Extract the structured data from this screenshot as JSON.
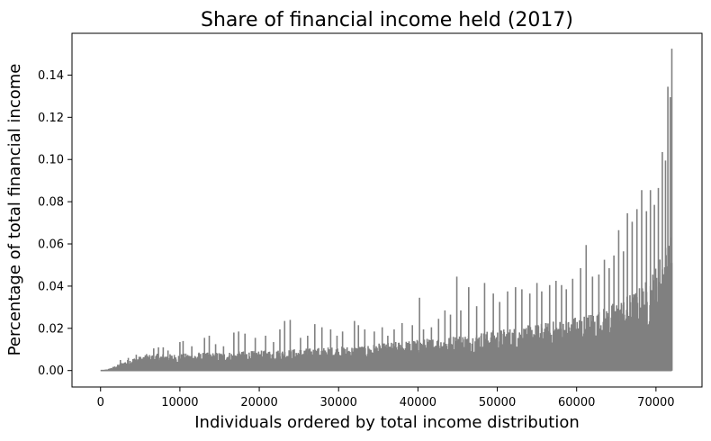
{
  "chart_data": {
    "type": "area",
    "title": "Share of financial income held (2017)",
    "xlabel": "Individuals ordered by total income distribution",
    "ylabel": "Percentage of total financial income",
    "xlim": [
      -3600,
      75800
    ],
    "ylim": [
      -0.0078,
      0.1598
    ],
    "x_ticks": [
      0,
      10000,
      20000,
      30000,
      40000,
      50000,
      60000,
      70000
    ],
    "x_tick_labels": [
      "0",
      "10000",
      "20000",
      "30000",
      "40000",
      "50000",
      "60000",
      "70000"
    ],
    "y_ticks": [
      0.0,
      0.02,
      0.04,
      0.06,
      0.08,
      0.1,
      0.12,
      0.14
    ],
    "y_tick_labels": [
      "0.00",
      "0.02",
      "0.04",
      "0.06",
      "0.08",
      "0.10",
      "0.12",
      "0.14"
    ],
    "series_color": "#808080",
    "grid": false,
    "n_individuals": 72000,
    "series": [
      {
        "x": [
          0,
          1000,
          2000,
          3000,
          4000,
          5000,
          6000,
          7000,
          8000,
          9000,
          10000,
          11000,
          12000,
          13000,
          14000,
          15000,
          16000,
          17000,
          18000,
          19000,
          20000,
          21000,
          22000,
          23000,
          24000,
          25000,
          26000,
          27000,
          28000,
          29000,
          30000,
          31000,
          32000,
          33000,
          34000,
          35000,
          36000,
          37000,
          38000,
          39000,
          40000,
          41000,
          42000,
          43000,
          44000,
          45000,
          46000,
          47000,
          48000,
          49000,
          50000,
          51000,
          52000,
          53000,
          54000,
          55000,
          56000,
          57000,
          58000,
          59000,
          60000,
          61000,
          62000,
          63000,
          64000,
          65000,
          66000,
          67000,
          68000,
          69000,
          70000,
          71000,
          72000
        ],
        "envelope": [
          0.0,
          0.0008,
          0.0025,
          0.0045,
          0.006,
          0.0068,
          0.0075,
          0.008,
          0.008,
          0.0078,
          0.008,
          0.0082,
          0.0083,
          0.0085,
          0.0086,
          0.0087,
          0.0088,
          0.009,
          0.0092,
          0.0093,
          0.0095,
          0.0096,
          0.0098,
          0.01,
          0.0102,
          0.0104,
          0.0106,
          0.0108,
          0.011,
          0.0112,
          0.0114,
          0.0116,
          0.0118,
          0.012,
          0.0124,
          0.0128,
          0.0132,
          0.0136,
          0.014,
          0.0144,
          0.0148,
          0.0152,
          0.0156,
          0.016,
          0.0165,
          0.017,
          0.0175,
          0.018,
          0.0185,
          0.019,
          0.0195,
          0.02,
          0.0205,
          0.021,
          0.0216,
          0.0222,
          0.0228,
          0.0235,
          0.0242,
          0.025,
          0.026,
          0.027,
          0.028,
          0.029,
          0.031,
          0.033,
          0.035,
          0.037,
          0.04,
          0.044,
          0.05,
          0.06,
          0.065
        ]
      }
    ],
    "spikes": [
      {
        "x": 2500,
        "y": 0.005
      },
      {
        "x": 3500,
        "y": 0.006
      },
      {
        "x": 4500,
        "y": 0.0075
      },
      {
        "x": 5800,
        "y": 0.0078
      },
      {
        "x": 6700,
        "y": 0.0105
      },
      {
        "x": 7300,
        "y": 0.011
      },
      {
        "x": 7900,
        "y": 0.011
      },
      {
        "x": 8500,
        "y": 0.0095
      },
      {
        "x": 10000,
        "y": 0.0135
      },
      {
        "x": 10400,
        "y": 0.014
      },
      {
        "x": 11500,
        "y": 0.0115
      },
      {
        "x": 12400,
        "y": 0.0085
      },
      {
        "x": 13100,
        "y": 0.0155
      },
      {
        "x": 13700,
        "y": 0.0165
      },
      {
        "x": 14500,
        "y": 0.0125
      },
      {
        "x": 15500,
        "y": 0.0115
      },
      {
        "x": 16800,
        "y": 0.018
      },
      {
        "x": 17400,
        "y": 0.0185
      },
      {
        "x": 18200,
        "y": 0.0175
      },
      {
        "x": 19500,
        "y": 0.0155
      },
      {
        "x": 20800,
        "y": 0.0165
      },
      {
        "x": 21800,
        "y": 0.0135
      },
      {
        "x": 22600,
        "y": 0.0195
      },
      {
        "x": 23200,
        "y": 0.0235
      },
      {
        "x": 23900,
        "y": 0.024
      },
      {
        "x": 25200,
        "y": 0.0155
      },
      {
        "x": 26100,
        "y": 0.0165
      },
      {
        "x": 27000,
        "y": 0.022
      },
      {
        "x": 27900,
        "y": 0.0205
      },
      {
        "x": 29000,
        "y": 0.0195
      },
      {
        "x": 29800,
        "y": 0.0165
      },
      {
        "x": 30500,
        "y": 0.0185
      },
      {
        "x": 32000,
        "y": 0.0235
      },
      {
        "x": 32500,
        "y": 0.0215
      },
      {
        "x": 33300,
        "y": 0.0195
      },
      {
        "x": 34500,
        "y": 0.0185
      },
      {
        "x": 35500,
        "y": 0.0205
      },
      {
        "x": 36200,
        "y": 0.0165
      },
      {
        "x": 37000,
        "y": 0.0195
      },
      {
        "x": 38000,
        "y": 0.0225
      },
      {
        "x": 39300,
        "y": 0.0215
      },
      {
        "x": 40200,
        "y": 0.0345
      },
      {
        "x": 40700,
        "y": 0.0195
      },
      {
        "x": 41700,
        "y": 0.0205
      },
      {
        "x": 42600,
        "y": 0.0245
      },
      {
        "x": 43400,
        "y": 0.0285
      },
      {
        "x": 44100,
        "y": 0.0265
      },
      {
        "x": 44900,
        "y": 0.0445
      },
      {
        "x": 45400,
        "y": 0.0285
      },
      {
        "x": 46400,
        "y": 0.0395
      },
      {
        "x": 47400,
        "y": 0.0305
      },
      {
        "x": 48400,
        "y": 0.0415
      },
      {
        "x": 49500,
        "y": 0.0365
      },
      {
        "x": 50300,
        "y": 0.0325
      },
      {
        "x": 51300,
        "y": 0.0375
      },
      {
        "x": 52300,
        "y": 0.0395
      },
      {
        "x": 53100,
        "y": 0.0385
      },
      {
        "x": 54100,
        "y": 0.0365
      },
      {
        "x": 55000,
        "y": 0.0415
      },
      {
        "x": 55600,
        "y": 0.0375
      },
      {
        "x": 56600,
        "y": 0.0405
      },
      {
        "x": 57400,
        "y": 0.0425
      },
      {
        "x": 58100,
        "y": 0.0405
      },
      {
        "x": 58700,
        "y": 0.0385
      },
      {
        "x": 59500,
        "y": 0.0435
      },
      {
        "x": 60500,
        "y": 0.0485
      },
      {
        "x": 61200,
        "y": 0.0595
      },
      {
        "x": 62000,
        "y": 0.0445
      },
      {
        "x": 62800,
        "y": 0.0455
      },
      {
        "x": 63500,
        "y": 0.0525
      },
      {
        "x": 64100,
        "y": 0.0485
      },
      {
        "x": 64700,
        "y": 0.0545
      },
      {
        "x": 65300,
        "y": 0.0665
      },
      {
        "x": 65900,
        "y": 0.0565
      },
      {
        "x": 66400,
        "y": 0.0745
      },
      {
        "x": 67000,
        "y": 0.0705
      },
      {
        "x": 67600,
        "y": 0.0765
      },
      {
        "x": 68200,
        "y": 0.0855
      },
      {
        "x": 68800,
        "y": 0.0755
      },
      {
        "x": 69300,
        "y": 0.0855
      },
      {
        "x": 69800,
        "y": 0.0785
      },
      {
        "x": 70300,
        "y": 0.0865
      },
      {
        "x": 70800,
        "y": 0.1035
      },
      {
        "x": 71200,
        "y": 0.0995
      },
      {
        "x": 71500,
        "y": 0.1345
      },
      {
        "x": 71800,
        "y": 0.1295
      },
      {
        "x": 72000,
        "y": 0.1525
      }
    ]
  }
}
